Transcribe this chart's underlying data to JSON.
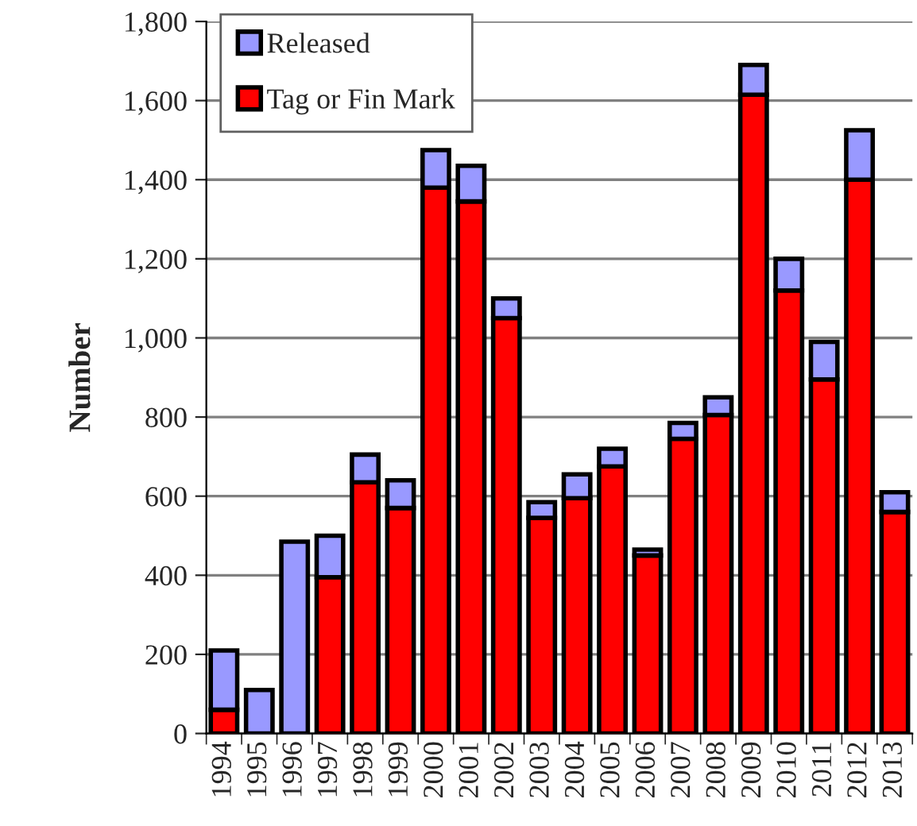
{
  "chart_data": {
    "type": "bar",
    "ylabel": "Number",
    "stacked": true,
    "categories": [
      "1994",
      "1995",
      "1996",
      "1997",
      "1998",
      "1999",
      "2000",
      "2001",
      "2002",
      "2003",
      "2004",
      "2005",
      "2006",
      "2007",
      "2008",
      "2009",
      "2010",
      "2011",
      "2012",
      "2013"
    ],
    "series": [
      {
        "name": "Tag or Fin Mark",
        "color": "#ff0000",
        "values": [
          60,
          0,
          0,
          395,
          635,
          570,
          1380,
          1345,
          1050,
          545,
          595,
          675,
          450,
          745,
          805,
          1615,
          1120,
          895,
          1400,
          560
        ]
      },
      {
        "name": "Released",
        "color": "#9999ff",
        "values": [
          150,
          110,
          485,
          105,
          70,
          70,
          95,
          90,
          50,
          40,
          60,
          45,
          15,
          40,
          45,
          75,
          80,
          95,
          125,
          50
        ]
      }
    ],
    "ylim": [
      0,
      1800
    ],
    "yticks": [
      0,
      {
        "value": 200,
        "label": "200"
      },
      {
        "value": 400,
        "label": "400"
      },
      {
        "value": 600,
        "label": "600"
      },
      {
        "value": 800,
        "label": "800"
      },
      {
        "value": 1000,
        "label": "1,000"
      },
      {
        "value": 1200,
        "label": "1,200"
      },
      {
        "value": 1400,
        "label": "1,400"
      },
      {
        "value": 1600,
        "label": "1,600"
      },
      {
        "value": 1800,
        "label": "1,800"
      }
    ],
    "grid": "y",
    "legend": "top left"
  }
}
